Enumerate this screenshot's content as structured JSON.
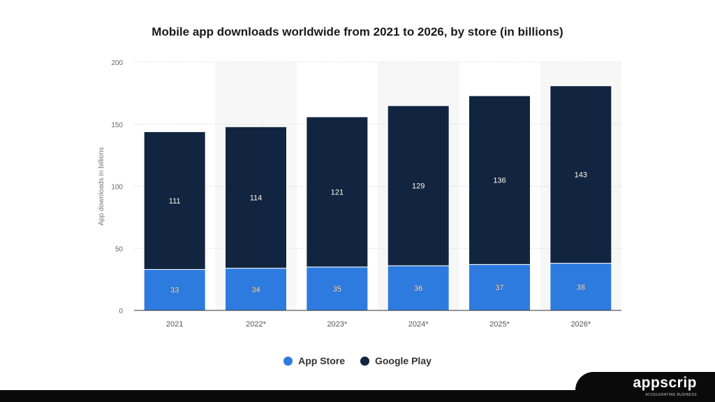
{
  "chart_data": {
    "type": "bar",
    "stacked": true,
    "title": "Mobile app downloads worldwide from 2021 to 2026, by store (in billions)",
    "xlabel": "",
    "ylabel": "App downloads in billions",
    "ylim": [
      0,
      200
    ],
    "yticks": [
      0,
      50,
      100,
      150,
      200
    ],
    "grid": true,
    "categories": [
      "2021",
      "2022*",
      "2023*",
      "2024*",
      "2025*",
      "2026*"
    ],
    "series": [
      {
        "name": "App Store",
        "color": "#2e7be0",
        "values": [
          33,
          34,
          35,
          36,
          37,
          38
        ]
      },
      {
        "name": "Google Play",
        "color": "#112540",
        "values": [
          111,
          114,
          121,
          129,
          136,
          143
        ]
      }
    ],
    "legend_position": "bottom-center"
  },
  "brand": {
    "name": "appscrip",
    "tagline": "ACCELERATING BUSINESS"
  }
}
